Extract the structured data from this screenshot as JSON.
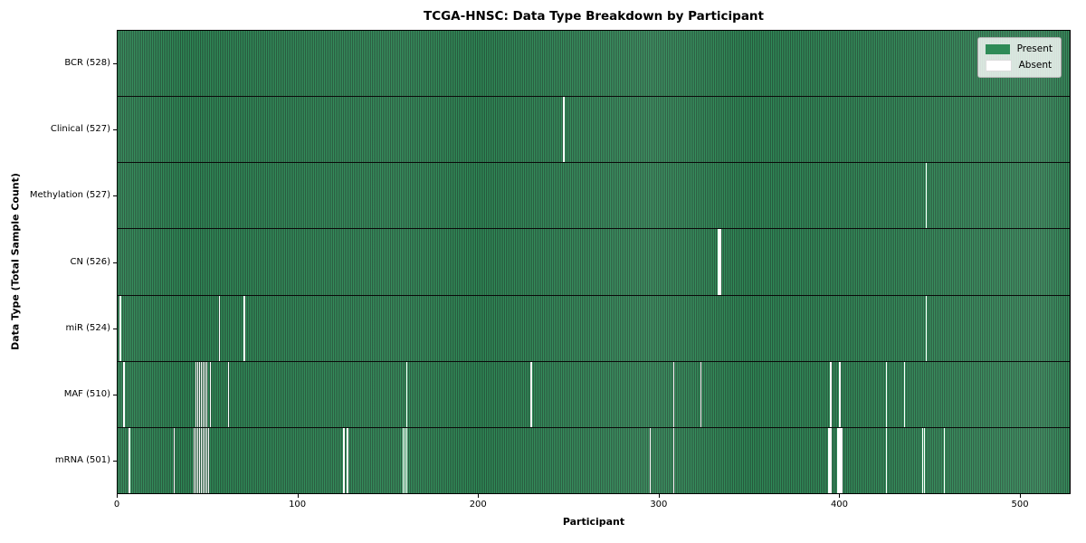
{
  "figure": {
    "title": "TCGA-HNSC: Data Type Breakdown by Participant",
    "xlabel": "Participant",
    "ylabel": "Data Type (Total Sample Count)"
  },
  "colors": {
    "present": "#2e8b57",
    "present_edge": "#26573c",
    "absent": "#ffffff",
    "axis": "#000000"
  },
  "legend": {
    "items": [
      {
        "label": "Present",
        "color": "#2e8b57"
      },
      {
        "label": "Absent",
        "color": "#ffffff"
      }
    ]
  },
  "chart_data": {
    "type": "heatmap",
    "title": "TCGA-HNSC: Data Type Breakdown by Participant",
    "xlabel": "Participant",
    "ylabel": "Data Type (Total Sample Count)",
    "x_axis": {
      "ticks": [
        0,
        100,
        200,
        300,
        400,
        500
      ],
      "range": [
        0,
        528
      ]
    },
    "n_participants": 528,
    "legend_position": "upper right",
    "rows": [
      {
        "label": "BCR (528)",
        "data_type": "BCR",
        "present_count": 528,
        "absent_participants": []
      },
      {
        "label": "Clinical (527)",
        "data_type": "Clinical",
        "present_count": 527,
        "absent_participants": [
          247
        ]
      },
      {
        "label": "Methylation (527)",
        "data_type": "Methylation",
        "present_count": 527,
        "absent_participants": [
          448
        ]
      },
      {
        "label": "CN (526)",
        "data_type": "CN",
        "present_count": 526,
        "absent_participants": [
          333,
          334
        ]
      },
      {
        "label": "miR (524)",
        "data_type": "miR",
        "present_count": 524,
        "absent_participants": [
          1,
          56,
          70,
          448
        ]
      },
      {
        "label": "MAF (510)",
        "data_type": "MAF",
        "present_count": 510,
        "absent_participants": [
          3,
          43,
          44,
          45,
          46,
          47,
          48,
          49,
          51,
          61,
          160,
          229,
          308,
          323,
          395,
          400,
          426,
          436
        ]
      },
      {
        "label": "mRNA (501)",
        "data_type": "mRNA",
        "present_count": 501,
        "absent_participants": [
          6,
          31,
          42,
          43,
          44,
          45,
          46,
          47,
          48,
          49,
          50,
          125,
          127,
          158,
          159,
          160,
          295,
          308,
          394,
          395,
          399,
          400,
          401,
          426,
          446,
          447,
          458
        ]
      }
    ]
  }
}
